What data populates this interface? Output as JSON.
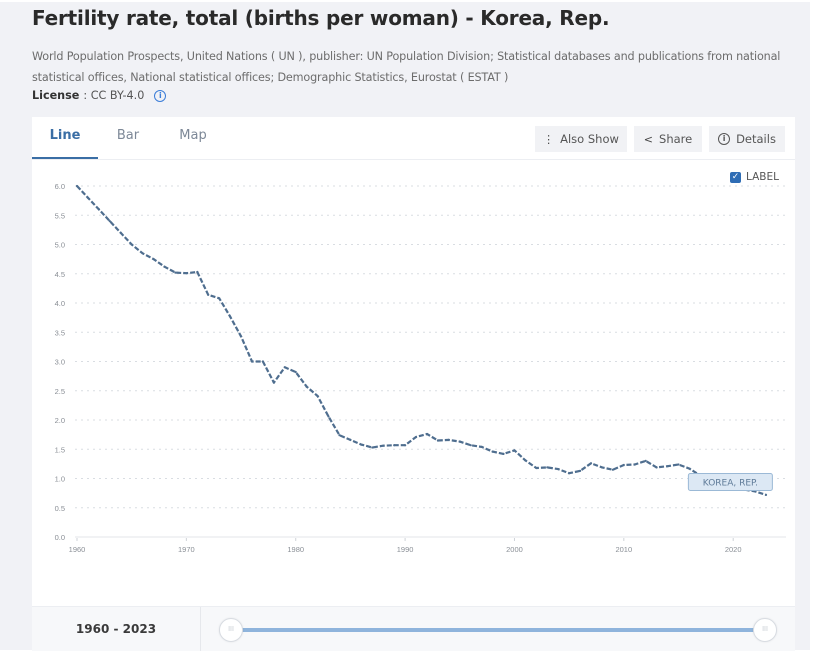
{
  "header": {
    "title": "Fertility rate, total (births per woman) - Korea, Rep.",
    "source": "World Population Prospects, United Nations ( UN ), publisher: UN Population Division; Statistical databases and publications from national statistical offices, National statistical offices; Demographic Statistics, Eurostat ( ESTAT )",
    "license_label": "License",
    "license_value": ": CC BY-4.0",
    "info_icon": "i"
  },
  "tabs": [
    {
      "label": "Line",
      "active": true
    },
    {
      "label": "Bar",
      "active": false
    },
    {
      "label": "Map",
      "active": false
    }
  ],
  "toolbar": {
    "also_show": "Also Show",
    "also_show_icon": "⋮",
    "share": "Share",
    "share_icon": "<",
    "details": "Details",
    "details_icon": "i"
  },
  "label_toggle": {
    "label": "LABEL",
    "checked": true,
    "check_glyph": "✓"
  },
  "footer": {
    "range_text": "1960 - 2023",
    "handle_glyph": "III",
    "range_start": 1960,
    "range_end": 2023
  },
  "colors": {
    "line": "#4f6e8f",
    "accent": "#3a6ea5",
    "track": "#8fb4dc",
    "label_bg": "#dce8f4",
    "label_border": "#9bb9d6"
  },
  "chart_data": {
    "type": "line",
    "title": "Fertility rate, total (births per woman) - Korea, Rep.",
    "xlabel": "",
    "ylabel": "",
    "xlim": [
      1960,
      2023
    ],
    "ylim": [
      0,
      6
    ],
    "grid": true,
    "x_ticks": [
      "1960",
      "1970",
      "1980",
      "1990",
      "2000",
      "2010",
      "2020"
    ],
    "y_ticks": [
      "0.0",
      "0.5",
      "1.0",
      "1.5",
      "2.0",
      "2.5",
      "3.0",
      "3.5",
      "4.0",
      "4.5",
      "5.0",
      "5.5",
      "6.0"
    ],
    "series": [
      {
        "name": "KOREA, REP.",
        "x": [
          1960,
          1961,
          1962,
          1963,
          1964,
          1965,
          1966,
          1967,
          1968,
          1969,
          1970,
          1971,
          1972,
          1973,
          1974,
          1975,
          1976,
          1977,
          1978,
          1979,
          1980,
          1981,
          1982,
          1983,
          1984,
          1985,
          1986,
          1987,
          1988,
          1989,
          1990,
          1991,
          1992,
          1993,
          1994,
          1995,
          1996,
          1997,
          1998,
          1999,
          2000,
          2001,
          2002,
          2003,
          2004,
          2005,
          2006,
          2007,
          2008,
          2009,
          2010,
          2011,
          2012,
          2013,
          2014,
          2015,
          2016,
          2017,
          2018,
          2019,
          2020,
          2021,
          2022,
          2023
        ],
        "values": [
          6.0,
          5.8,
          5.6,
          5.4,
          5.2,
          5.0,
          4.85,
          4.75,
          4.62,
          4.52,
          4.51,
          4.53,
          4.14,
          4.08,
          3.77,
          3.43,
          3.0,
          3.0,
          2.64,
          2.9,
          2.82,
          2.57,
          2.41,
          2.06,
          1.74,
          1.66,
          1.58,
          1.53,
          1.56,
          1.57,
          1.57,
          1.71,
          1.76,
          1.65,
          1.66,
          1.63,
          1.57,
          1.54,
          1.46,
          1.42,
          1.48,
          1.31,
          1.18,
          1.19,
          1.16,
          1.09,
          1.13,
          1.26,
          1.19,
          1.15,
          1.23,
          1.24,
          1.3,
          1.19,
          1.21,
          1.24,
          1.17,
          1.05,
          0.98,
          0.92,
          0.84,
          0.81,
          0.78,
          0.72
        ]
      }
    ],
    "series_label": "KOREA, REP.",
    "legend": "none"
  }
}
